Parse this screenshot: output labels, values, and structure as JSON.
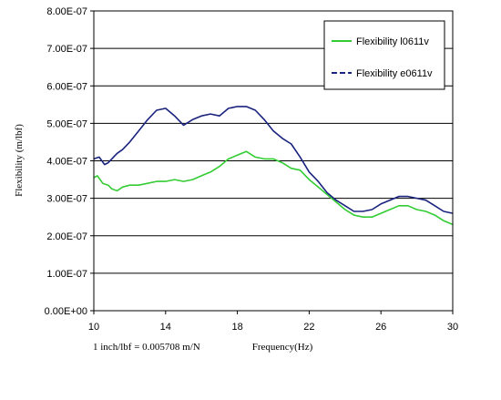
{
  "chart_data": {
    "type": "line",
    "title": "",
    "xlabel": "Frequency(Hz)",
    "ylabel": "Flexibility (m/lbf)",
    "note": "1 inch/lbf = 0.005708 m/N",
    "xlim": [
      10,
      30
    ],
    "ylim": [
      0,
      8e-07
    ],
    "x_ticks": [
      10,
      14,
      18,
      22,
      26,
      30
    ],
    "x_tick_labels": [
      "10",
      "14",
      "18",
      "22",
      "26",
      "30"
    ],
    "y_ticks": [
      0,
      1e-07,
      2e-07,
      3e-07,
      4e-07,
      5e-07,
      6e-07,
      7e-07,
      8e-07
    ],
    "y_tick_labels": [
      "0.00E+00",
      "1.00E-07",
      "2.00E-07",
      "3.00E-07",
      "4.00E-07",
      "5.00E-07",
      "6.00E-07",
      "7.00E-07",
      "8.00E-07"
    ],
    "grid": "horizontal",
    "legend_position": "top-right",
    "series": [
      {
        "name": "Flexibility l0611v",
        "color": "#33cc33",
        "dash": "solid",
        "points": [
          [
            10.0,
            3.55e-07
          ],
          [
            10.2,
            3.6e-07
          ],
          [
            10.5,
            3.4e-07
          ],
          [
            10.8,
            3.35e-07
          ],
          [
            11.0,
            3.25e-07
          ],
          [
            11.3,
            3.2e-07
          ],
          [
            11.6,
            3.3e-07
          ],
          [
            12.0,
            3.35e-07
          ],
          [
            12.5,
            3.35e-07
          ],
          [
            13.0,
            3.4e-07
          ],
          [
            13.5,
            3.45e-07
          ],
          [
            14.0,
            3.45e-07
          ],
          [
            14.5,
            3.5e-07
          ],
          [
            15.0,
            3.45e-07
          ],
          [
            15.5,
            3.5e-07
          ],
          [
            16.0,
            3.6e-07
          ],
          [
            16.5,
            3.7e-07
          ],
          [
            17.0,
            3.85e-07
          ],
          [
            17.5,
            4.05e-07
          ],
          [
            18.0,
            4.15e-07
          ],
          [
            18.5,
            4.25e-07
          ],
          [
            19.0,
            4.1e-07
          ],
          [
            19.5,
            4.05e-07
          ],
          [
            20.0,
            4.05e-07
          ],
          [
            20.5,
            3.95e-07
          ],
          [
            21.0,
            3.8e-07
          ],
          [
            21.5,
            3.75e-07
          ],
          [
            22.0,
            3.5e-07
          ],
          [
            22.5,
            3.3e-07
          ],
          [
            23.0,
            3.1e-07
          ],
          [
            23.5,
            2.9e-07
          ],
          [
            24.0,
            2.7e-07
          ],
          [
            24.5,
            2.55e-07
          ],
          [
            25.0,
            2.5e-07
          ],
          [
            25.5,
            2.5e-07
          ],
          [
            26.0,
            2.6e-07
          ],
          [
            26.5,
            2.7e-07
          ],
          [
            27.0,
            2.8e-07
          ],
          [
            27.5,
            2.8e-07
          ],
          [
            28.0,
            2.7e-07
          ],
          [
            28.5,
            2.65e-07
          ],
          [
            29.0,
            2.55e-07
          ],
          [
            29.5,
            2.4e-07
          ],
          [
            30.0,
            2.3e-07
          ]
        ]
      },
      {
        "name": "Flexibility e0611v",
        "color": "#1a237e",
        "dash": "dashed",
        "points": [
          [
            10.0,
            4.05e-07
          ],
          [
            10.3,
            4.1e-07
          ],
          [
            10.6,
            3.9e-07
          ],
          [
            10.8,
            3.95e-07
          ],
          [
            11.0,
            4.05e-07
          ],
          [
            11.3,
            4.2e-07
          ],
          [
            11.6,
            4.3e-07
          ],
          [
            12.0,
            4.5e-07
          ],
          [
            12.5,
            4.8e-07
          ],
          [
            13.0,
            5.1e-07
          ],
          [
            13.5,
            5.35e-07
          ],
          [
            14.0,
            5.4e-07
          ],
          [
            14.5,
            5.2e-07
          ],
          [
            15.0,
            4.95e-07
          ],
          [
            15.5,
            5.1e-07
          ],
          [
            16.0,
            5.2e-07
          ],
          [
            16.5,
            5.25e-07
          ],
          [
            17.0,
            5.2e-07
          ],
          [
            17.5,
            5.4e-07
          ],
          [
            18.0,
            5.45e-07
          ],
          [
            18.5,
            5.45e-07
          ],
          [
            19.0,
            5.35e-07
          ],
          [
            19.5,
            5.1e-07
          ],
          [
            20.0,
            4.8e-07
          ],
          [
            20.5,
            4.6e-07
          ],
          [
            21.0,
            4.45e-07
          ],
          [
            21.5,
            4.1e-07
          ],
          [
            22.0,
            3.7e-07
          ],
          [
            22.5,
            3.45e-07
          ],
          [
            23.0,
            3.15e-07
          ],
          [
            23.5,
            2.95e-07
          ],
          [
            24.0,
            2.8e-07
          ],
          [
            24.5,
            2.65e-07
          ],
          [
            25.0,
            2.65e-07
          ],
          [
            25.5,
            2.7e-07
          ],
          [
            26.0,
            2.85e-07
          ],
          [
            26.5,
            2.95e-07
          ],
          [
            27.0,
            3.05e-07
          ],
          [
            27.5,
            3.05e-07
          ],
          [
            28.0,
            3e-07
          ],
          [
            28.5,
            2.95e-07
          ],
          [
            29.0,
            2.8e-07
          ],
          [
            29.5,
            2.65e-07
          ],
          [
            30.0,
            2.6e-07
          ]
        ]
      }
    ]
  }
}
